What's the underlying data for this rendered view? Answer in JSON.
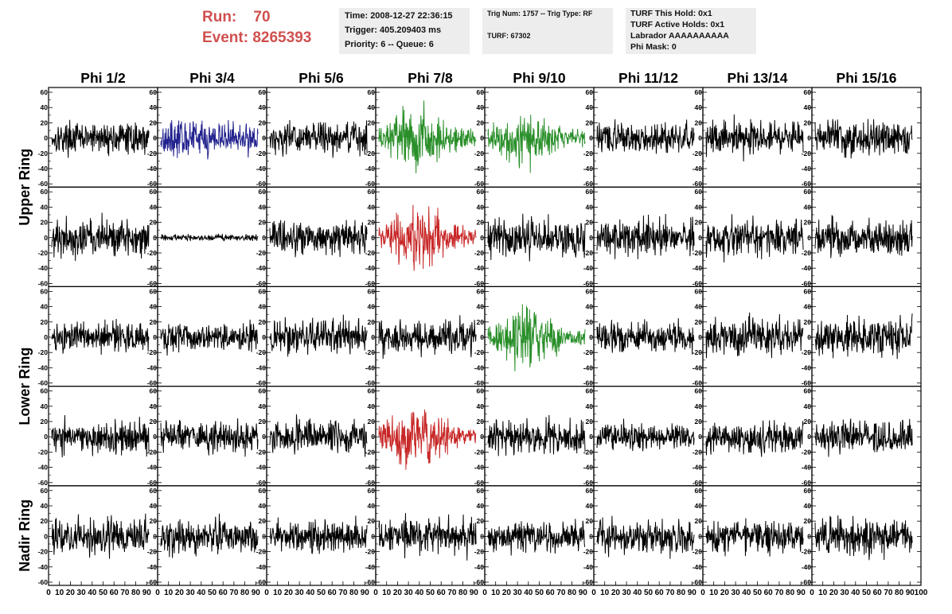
{
  "header": {
    "run_label": "Run:",
    "run_value": "70",
    "event_label": "Event:",
    "event_value": "8265393",
    "time": "Time: 2008-12-27 22:36:15",
    "trigger": "Trigger: 405.209403 ms",
    "priority": "Priority: 6 -- Queue: 6",
    "trig_num": "Trig Num: 1757 -- Trig Type: RF",
    "turf": "TURF: 67302",
    "turf_this_hold": "TURF This Hold: 0x1",
    "turf_active_holds": "TURF Active Holds: 0x1",
    "labrador": "Labrador AAAAAAAAAA",
    "phi_mask": "Phi Mask: 0"
  },
  "colors": {
    "header_text": "#d0504f",
    "info_background": "#ededed",
    "trace_default": "#000000",
    "trace_blue": "#23238f",
    "trace_green": "#2a8f2a",
    "trace_red": "#c82828"
  },
  "chart_data": {
    "type": "line",
    "columns": [
      "Phi 1/2",
      "Phi 3/4",
      "Phi 5/6",
      "Phi 7/8",
      "Phi 9/10",
      "Phi 11/12",
      "Phi 13/14",
      "Phi 15/16"
    ],
    "rows": [
      "Upper Ring",
      "Upper Ring",
      "Lower Ring",
      "Lower Ring",
      "Nadir Ring"
    ],
    "row_labels": [
      "Upper Ring",
      "Lower Ring",
      "Nadir Ring"
    ],
    "y_ticks": [
      -60,
      -40,
      -20,
      0,
      20,
      40,
      60
    ],
    "ylim": [
      -60,
      60
    ],
    "x_ticks": [
      0,
      10,
      20,
      30,
      40,
      50,
      60,
      70,
      80,
      90,
      100
    ],
    "xlim": [
      0,
      100
    ],
    "samples_per_trace": 260,
    "panels": [
      {
        "row": 0,
        "col": 0,
        "color": "black",
        "amplitude": 14
      },
      {
        "row": 0,
        "col": 1,
        "color": "blue",
        "amplitude": 16
      },
      {
        "row": 0,
        "col": 2,
        "color": "black",
        "amplitude": 15
      },
      {
        "row": 0,
        "col": 3,
        "color": "green",
        "amplitude": 24
      },
      {
        "row": 0,
        "col": 4,
        "color": "green",
        "amplitude": 22
      },
      {
        "row": 0,
        "col": 5,
        "color": "black",
        "amplitude": 14
      },
      {
        "row": 0,
        "col": 6,
        "color": "black",
        "amplitude": 16
      },
      {
        "row": 0,
        "col": 7,
        "color": "black",
        "amplitude": 16
      },
      {
        "row": 1,
        "col": 0,
        "color": "black",
        "amplitude": 18
      },
      {
        "row": 1,
        "col": 1,
        "color": "black",
        "amplitude": 3
      },
      {
        "row": 1,
        "col": 2,
        "color": "black",
        "amplitude": 16
      },
      {
        "row": 1,
        "col": 3,
        "color": "red",
        "amplitude": 24
      },
      {
        "row": 1,
        "col": 4,
        "color": "black",
        "amplitude": 18
      },
      {
        "row": 1,
        "col": 5,
        "color": "black",
        "amplitude": 17
      },
      {
        "row": 1,
        "col": 6,
        "color": "black",
        "amplitude": 17
      },
      {
        "row": 1,
        "col": 7,
        "color": "black",
        "amplitude": 17
      },
      {
        "row": 2,
        "col": 0,
        "color": "black",
        "amplitude": 14
      },
      {
        "row": 2,
        "col": 1,
        "color": "black",
        "amplitude": 15
      },
      {
        "row": 2,
        "col": 2,
        "color": "black",
        "amplitude": 16
      },
      {
        "row": 2,
        "col": 3,
        "color": "black",
        "amplitude": 16
      },
      {
        "row": 2,
        "col": 4,
        "color": "green",
        "amplitude": 22
      },
      {
        "row": 2,
        "col": 5,
        "color": "black",
        "amplitude": 14
      },
      {
        "row": 2,
        "col": 6,
        "color": "black",
        "amplitude": 18
      },
      {
        "row": 2,
        "col": 7,
        "color": "black",
        "amplitude": 18
      },
      {
        "row": 3,
        "col": 0,
        "color": "black",
        "amplitude": 16
      },
      {
        "row": 3,
        "col": 1,
        "color": "black",
        "amplitude": 14
      },
      {
        "row": 3,
        "col": 2,
        "color": "black",
        "amplitude": 16
      },
      {
        "row": 3,
        "col": 3,
        "color": "red",
        "amplitude": 25
      },
      {
        "row": 3,
        "col": 4,
        "color": "black",
        "amplitude": 17
      },
      {
        "row": 3,
        "col": 5,
        "color": "black",
        "amplitude": 13
      },
      {
        "row": 3,
        "col": 6,
        "color": "black",
        "amplitude": 16
      },
      {
        "row": 3,
        "col": 7,
        "color": "black",
        "amplitude": 15
      },
      {
        "row": 4,
        "col": 0,
        "color": "black",
        "amplitude": 16
      },
      {
        "row": 4,
        "col": 1,
        "color": "black",
        "amplitude": 16
      },
      {
        "row": 4,
        "col": 2,
        "color": "black",
        "amplitude": 14
      },
      {
        "row": 4,
        "col": 3,
        "color": "black",
        "amplitude": 17
      },
      {
        "row": 4,
        "col": 4,
        "color": "black",
        "amplitude": 15
      },
      {
        "row": 4,
        "col": 5,
        "color": "black",
        "amplitude": 16
      },
      {
        "row": 4,
        "col": 6,
        "color": "black",
        "amplitude": 15
      },
      {
        "row": 4,
        "col": 7,
        "color": "black",
        "amplitude": 18
      }
    ]
  }
}
